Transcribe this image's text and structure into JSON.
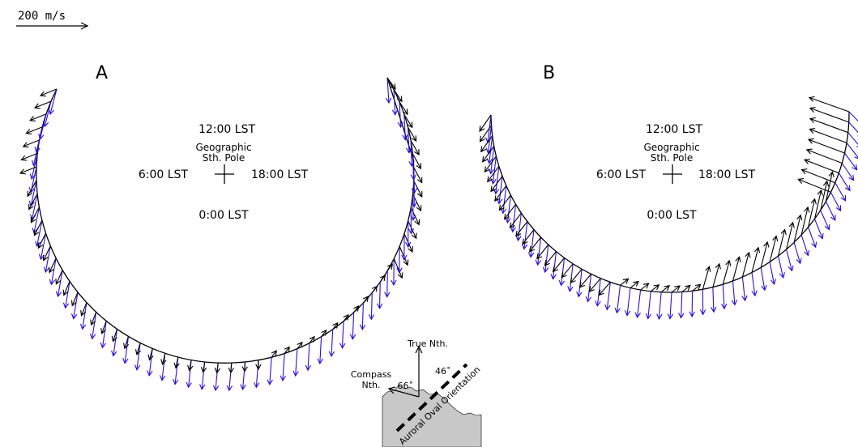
{
  "scale_bar": {
    "label": "200 m/s"
  },
  "panels": [
    {
      "id": "A",
      "letter": "A",
      "top": "12:00 LST",
      "pole_line1": "Geographic",
      "pole_line2": "Sth. Pole",
      "left": "6:00 LST",
      "right": "18:00 LST",
      "bottom": "0:00 LST"
    },
    {
      "id": "B",
      "letter": "B",
      "top": "12:00 LST",
      "pole_line1": "Geographic",
      "pole_line2": "Sth. Pole",
      "left": "6:00 LST",
      "right": "18:00 LST",
      "bottom": "0:00 LST"
    }
  ],
  "inset": {
    "true_north": "True Nth.",
    "compass_line1": "Compass",
    "compass_line2": "Nth.",
    "angle_left": "66˚",
    "angle_right": "46˚",
    "oval_label": "Auroral Oval Orientation"
  },
  "colors": {
    "black_vector": "#000000",
    "blue_vector": "#2a10d8",
    "land": "#c8c8c8"
  }
}
